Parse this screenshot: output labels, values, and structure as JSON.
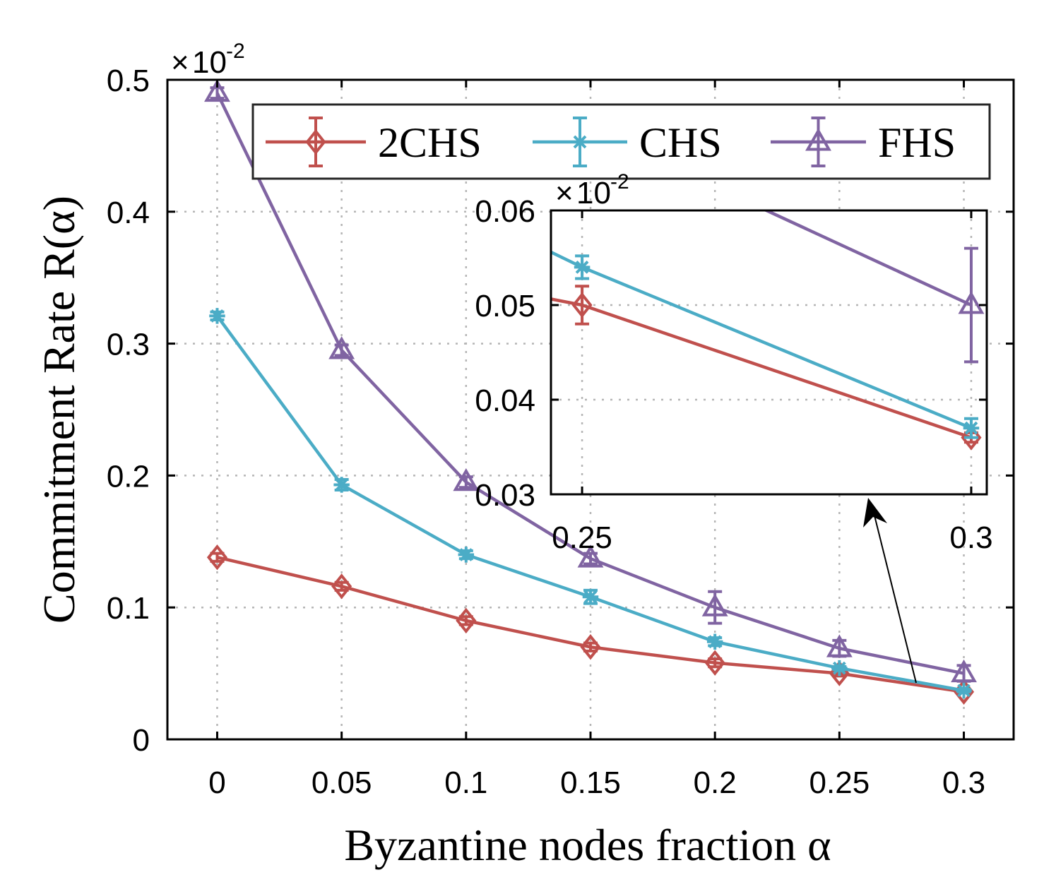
{
  "chart_data": {
    "type": "line",
    "xlabel": "Byzantine nodes fraction α",
    "ylabel": "Commitment Rate R(α)",
    "y_multiplier": {
      "times": "×",
      "base": "10",
      "exponent": "-2"
    },
    "x": [
      0,
      0.05,
      0.1,
      0.15,
      0.2,
      0.25,
      0.3
    ],
    "x_tick_labels": [
      "0",
      "0.05",
      "0.1",
      "0.15",
      "0.2",
      "0.25",
      "0.3"
    ],
    "y_ticks": [
      0,
      0.1,
      0.2,
      0.3,
      0.4,
      0.5
    ],
    "y_tick_labels": [
      "0",
      "0.1",
      "0.2",
      "0.3",
      "0.4",
      "0.5"
    ],
    "xlim": [
      -0.02,
      0.32
    ],
    "ylim": [
      0,
      0.5
    ],
    "grid": true,
    "legend_position": "top-right",
    "error_bars": true,
    "series": [
      {
        "name": "2CHS",
        "color": "#c0504d",
        "marker": "diamond",
        "values": [
          0.138,
          0.116,
          0.09,
          0.07,
          0.058,
          0.05,
          0.036
        ],
        "errors": [
          0.003,
          0.003,
          0.003,
          0.003,
          0.003,
          0.002,
          0.0005
        ]
      },
      {
        "name": "CHS",
        "color": "#4bacc6",
        "marker": "asterisk",
        "values": [
          0.321,
          0.193,
          0.14,
          0.108,
          0.074,
          0.054,
          0.037
        ],
        "errors": [
          0.003,
          0.004,
          0.003,
          0.005,
          0.003,
          0.0012,
          0.001
        ]
      },
      {
        "name": "FHS",
        "color": "#8064a2",
        "marker": "triangle",
        "values": [
          0.49,
          0.295,
          0.195,
          0.137,
          0.1,
          0.069,
          0.05
        ],
        "errors": [
          0.004,
          0.004,
          0.004,
          0.004,
          0.012,
          0.006,
          0.006
        ]
      }
    ],
    "inset": {
      "x": [
        0.25,
        0.3
      ],
      "x_tick_labels": [
        "0.25",
        "0.3"
      ],
      "y_ticks": [
        0.03,
        0.04,
        0.05,
        0.06
      ],
      "y_tick_labels": [
        "0.03",
        "0.04",
        "0.05",
        "0.06"
      ],
      "xlim": [
        0.246,
        0.302
      ],
      "ylim": [
        0.03,
        0.06
      ],
      "y_multiplier": {
        "times": "×",
        "base": "10",
        "exponent": "-2"
      }
    }
  }
}
